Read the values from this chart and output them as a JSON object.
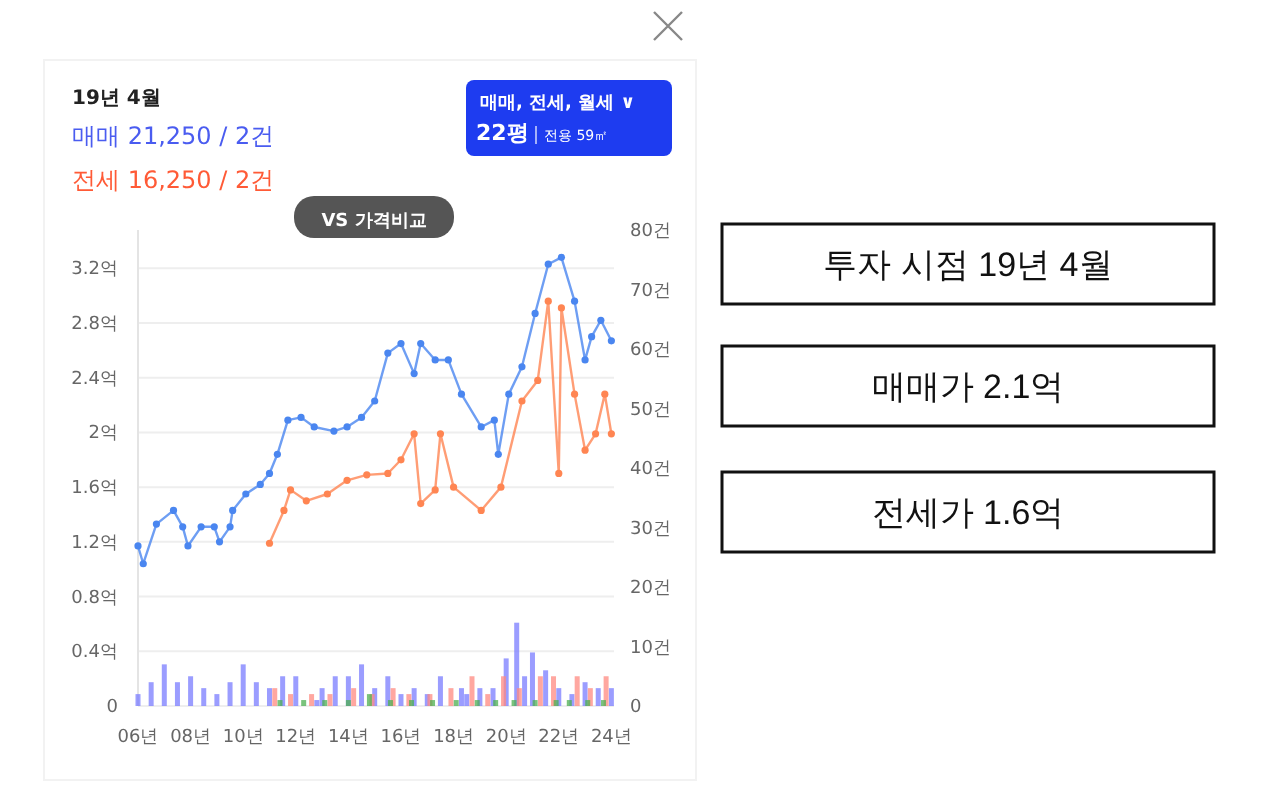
{
  "chart_data": {
    "type": "line",
    "annotations": [
      "19년 4월",
      "매매 21,250 / 2건",
      "전세 16,250 / 2건",
      "VS 가격비교",
      "매매, 전세, 월세 ∨",
      "22평",
      "전용 59㎡",
      "투자 시점 19년 4월",
      "매매가 2.1억",
      "전세가 1.6억"
    ],
    "xlim": [
      6,
      24.1
    ],
    "xticks": [
      {
        "value": 6,
        "label": "06년"
      },
      {
        "value": 8,
        "label": "08년"
      },
      {
        "value": 10,
        "label": "10년"
      },
      {
        "value": 12,
        "label": "12년"
      },
      {
        "value": 14,
        "label": "14년"
      },
      {
        "value": 16,
        "label": "16년"
      },
      {
        "value": 18,
        "label": "18년"
      },
      {
        "value": 20,
        "label": "20년"
      },
      {
        "value": 22,
        "label": "22년"
      },
      {
        "value": 24,
        "label": "24년"
      }
    ],
    "ylim": [
      0,
      3.48
    ],
    "yticks": [
      0,
      {
        "value": 0.4,
        "label": "0.4억"
      },
      {
        "value": 0.8,
        "label": "0.8억"
      },
      {
        "value": 1.2,
        "label": "1.2억"
      },
      {
        "value": 1.6,
        "label": "1.6억"
      },
      {
        "value": 2,
        "label": "2억"
      },
      {
        "value": 2.4,
        "label": "2.4억"
      },
      {
        "value": 2.8,
        "label": "2.8억"
      },
      {
        "value": 3.2,
        "label": "3.2억"
      }
    ],
    "y2lim": [
      0,
      80
    ],
    "y2ticks": [
      0,
      {
        "value": 10,
        "label": "10건"
      },
      {
        "value": 20,
        "label": "20건"
      },
      {
        "value": 30,
        "label": "30건"
      },
      {
        "value": 40,
        "label": "40건"
      },
      {
        "value": 50,
        "label": "50건"
      },
      {
        "value": 60,
        "label": "60건"
      },
      {
        "value": 70,
        "label": "70건"
      },
      {
        "value": 80,
        "label": "80건"
      }
    ],
    "grid": "y",
    "marker": "circle",
    "line_style": "solid",
    "series": [
      {
        "color": "#4a86f0",
        "x": [
          6.0,
          6.2,
          6.7,
          7.35,
          7.7,
          7.9,
          8.4,
          8.9,
          9.1,
          9.5,
          9.6,
          10.1,
          10.65,
          11.0,
          11.3,
          11.7,
          12.2,
          12.7,
          13.45,
          13.95,
          14.5,
          15.0,
          15.5,
          16.0,
          16.5,
          16.75,
          17.3,
          17.8,
          18.3,
          19.05,
          19.55,
          19.7,
          20.1,
          20.6,
          21.1,
          21.6,
          22.1,
          22.6,
          23.0,
          23.25,
          23.6,
          24.0
        ],
        "values": [
          1.17,
          1.04,
          1.33,
          1.43,
          1.31,
          1.17,
          1.31,
          1.31,
          1.2,
          1.31,
          1.43,
          1.55,
          1.62,
          1.7,
          1.84,
          2.09,
          2.11,
          2.04,
          2.01,
          2.04,
          2.11,
          2.23,
          2.58,
          2.65,
          2.43,
          2.65,
          2.53,
          2.53,
          2.28,
          2.04,
          2.09,
          1.84,
          2.28,
          2.48,
          2.87,
          3.23,
          3.28,
          2.96,
          2.53,
          2.7,
          2.82,
          2.67
        ]
      },
      {
        "color": "#ff8552",
        "x": [
          11.0,
          11.55,
          11.8,
          12.4,
          13.2,
          13.95,
          14.7,
          15.5,
          16.0,
          16.5,
          16.75,
          17.3,
          17.5,
          18.0,
          19.05,
          19.8,
          20.6,
          21.2,
          21.6,
          22.0,
          22.1,
          22.6,
          23.0,
          23.4,
          23.75,
          24.0
        ],
        "values": [
          1.19,
          1.43,
          1.58,
          1.5,
          1.55,
          1.65,
          1.69,
          1.7,
          1.8,
          1.99,
          1.48,
          1.58,
          1.99,
          1.6,
          1.43,
          1.6,
          2.23,
          2.38,
          2.96,
          1.7,
          2.91,
          2.28,
          1.87,
          1.99,
          2.28,
          1.99
        ]
      },
      {
        "type": "bar",
        "axis": "y2",
        "color": "#7a7cff",
        "x": [
          6.0,
          6.5,
          7.0,
          7.5,
          8.0,
          8.5,
          9.0,
          9.5,
          10.0,
          10.5,
          11.0,
          11.5,
          12.0,
          12.8,
          13.0,
          13.5,
          14.0,
          14.5,
          15.0,
          15.5,
          16.0,
          16.5,
          17.0,
          17.5,
          18.3,
          18.5,
          19.0,
          19.5,
          20.0,
          20.4,
          20.7,
          21.0,
          21.5,
          22.0,
          22.5,
          23.0,
          23.5,
          24.0
        ],
        "values": [
          2,
          4,
          7,
          4,
          5,
          3,
          2,
          4,
          7,
          4,
          3,
          5,
          5,
          1,
          3,
          5,
          5,
          7,
          3,
          5,
          2,
          3,
          2,
          5,
          3,
          2,
          3,
          3,
          8,
          14,
          5,
          9,
          6,
          3,
          2,
          4,
          3,
          3
        ]
      },
      {
        "type": "bar",
        "axis": "y2",
        "color": "#ff8a80",
        "x": [
          11.2,
          11.8,
          12.6,
          13.3,
          14.2,
          14.9,
          15.7,
          16.3,
          17.1,
          17.9,
          18.7,
          19.3,
          19.9,
          20.5,
          21.3,
          21.8,
          22.7,
          23.2,
          23.8
        ],
        "values": [
          3,
          2,
          2,
          2,
          3,
          2,
          3,
          2,
          2,
          3,
          5,
          2,
          5,
          3,
          5,
          5,
          5,
          3,
          5
        ]
      },
      {
        "type": "bar",
        "axis": "y2",
        "color": "#4caf50",
        "x": [
          11.4,
          12.3,
          13.1,
          14.0,
          14.8,
          15.6,
          16.4,
          17.2,
          18.1,
          18.9,
          19.6,
          20.3,
          21.1,
          21.9,
          22.4,
          23.1,
          23.7
        ],
        "values": [
          1,
          1,
          1,
          1,
          2,
          1,
          1,
          1,
          1,
          1,
          1,
          1,
          1,
          1,
          1,
          1,
          1
        ]
      }
    ]
  }
}
